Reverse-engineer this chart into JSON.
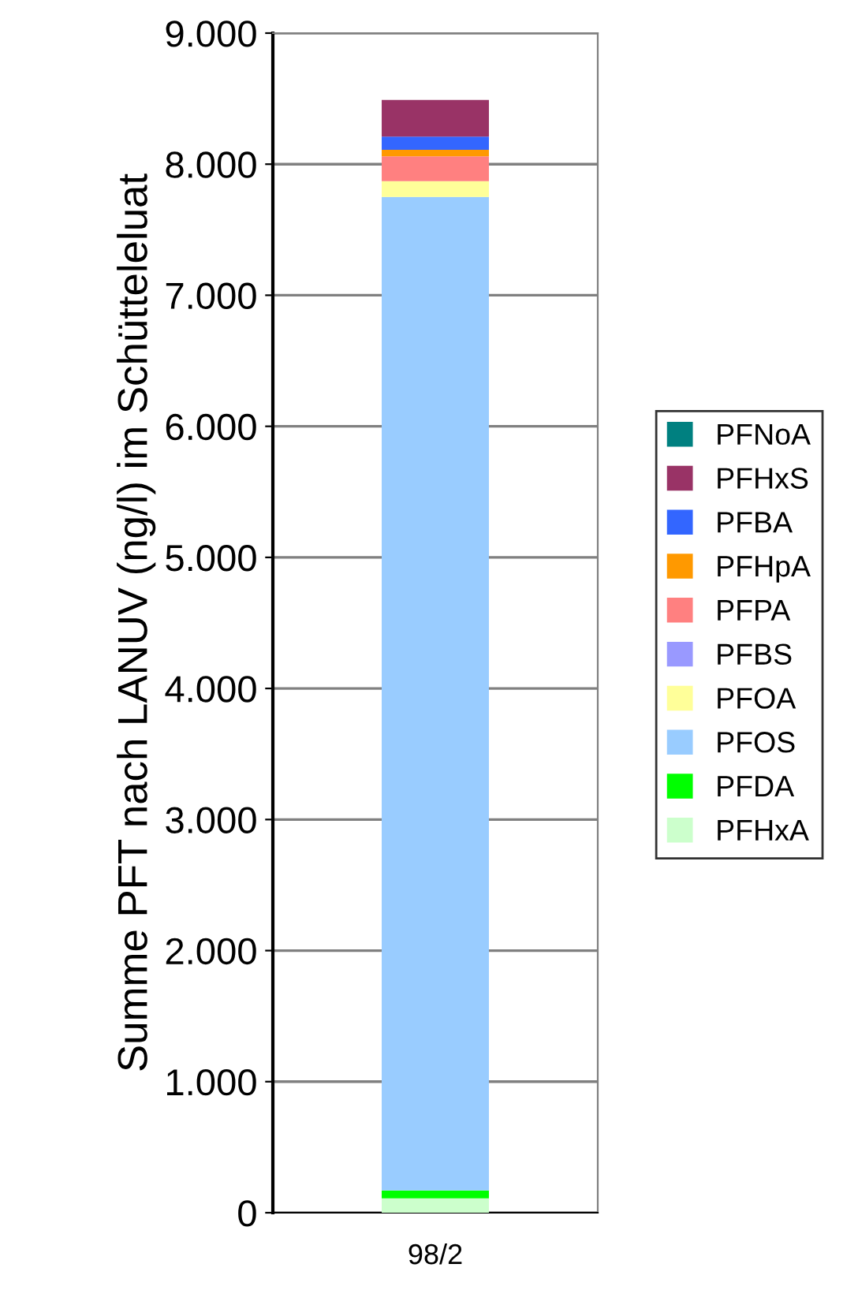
{
  "chart_data": {
    "type": "bar",
    "stacked": true,
    "ylabel": "Summe PFT nach LANUV (ng/l) im Schütteleluat",
    "categories": [
      "98/2"
    ],
    "series": [
      {
        "name": "PFHxA",
        "color": "#ccffcc",
        "values": [
          110
        ]
      },
      {
        "name": "PFDA",
        "color": "#00ff00",
        "values": [
          60
        ]
      },
      {
        "name": "PFOS",
        "color": "#99ccff",
        "values": [
          7580
        ]
      },
      {
        "name": "PFOA",
        "color": "#ffff99",
        "values": [
          120
        ]
      },
      {
        "name": "PFBS",
        "color": "#9999ff",
        "values": [
          0
        ]
      },
      {
        "name": "PFPA",
        "color": "#ff8080",
        "values": [
          190
        ]
      },
      {
        "name": "PFHpA",
        "color": "#ff9900",
        "values": [
          50
        ]
      },
      {
        "name": "PFBA",
        "color": "#3366ff",
        "values": [
          100
        ]
      },
      {
        "name": "PFHxS",
        "color": "#993366",
        "values": [
          280
        ]
      },
      {
        "name": "PFNoA",
        "color": "#008080",
        "values": [
          0
        ]
      }
    ],
    "ylim": [
      0,
      9000
    ],
    "yticks": [
      {
        "value": 0,
        "label": "0"
      },
      {
        "value": 1000,
        "label": "1.000"
      },
      {
        "value": 2000,
        "label": "2.000"
      },
      {
        "value": 3000,
        "label": "3.000"
      },
      {
        "value": 4000,
        "label": "4.000"
      },
      {
        "value": 5000,
        "label": "5.000"
      },
      {
        "value": 6000,
        "label": "6.000"
      },
      {
        "value": 7000,
        "label": "7.000"
      },
      {
        "value": 8000,
        "label": "8.000"
      },
      {
        "value": 9000,
        "label": "9.000"
      }
    ],
    "grid": "y",
    "legend": "right"
  }
}
